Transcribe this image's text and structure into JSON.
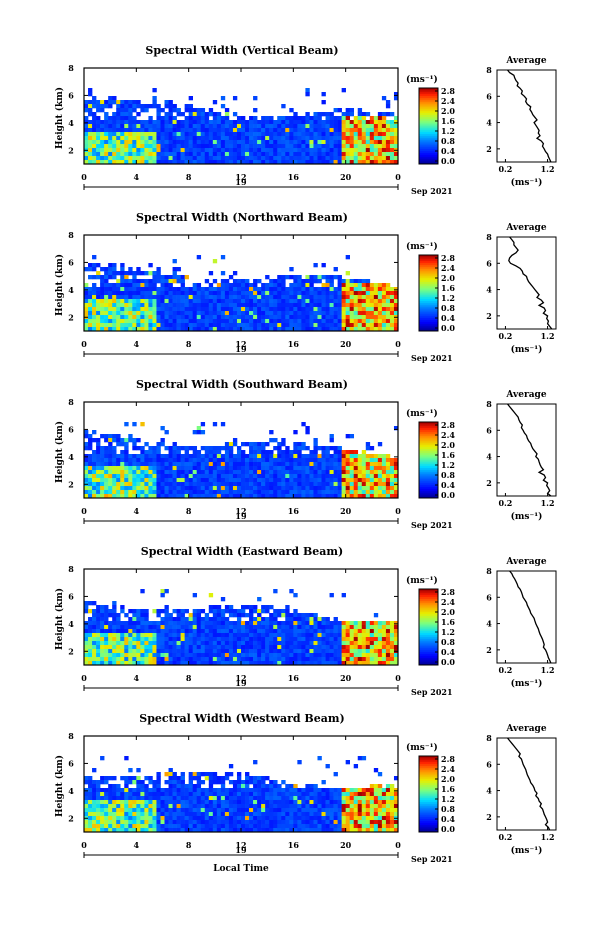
{
  "chart_data": [
    {
      "type": "heatmap",
      "title": "Spectral Width (Vertical Beam)",
      "ylabel": "Height (km)",
      "yticks": [
        "2",
        "4",
        "6",
        "8"
      ],
      "xticks": [
        "0",
        "4",
        "8",
        "12",
        "16",
        "20",
        "0"
      ],
      "date_day": "19",
      "date_month": "Sep 2021",
      "colorbar": {
        "unit": "(ms⁻¹)",
        "ticks": [
          "0.0",
          "0.4",
          "0.8",
          "1.2",
          "1.6",
          "2.0",
          "2.4",
          "2.8"
        ]
      },
      "average": {
        "title": "Average",
        "xlabel": "(ms⁻¹)",
        "xticks": [
          "0.2",
          "1.2"
        ],
        "yticks": [
          "2",
          "4",
          "6",
          "8"
        ],
        "heights": [
          8.0,
          7.8,
          7.6,
          7.4,
          7.2,
          7.0,
          6.8,
          6.6,
          6.4,
          6.2,
          6.0,
          5.8,
          5.6,
          5.4,
          5.2,
          5.0,
          4.8,
          4.6,
          4.4,
          4.2,
          4.0,
          3.8,
          3.6,
          3.4,
          3.2,
          3.0,
          2.8,
          2.6,
          2.4,
          2.2,
          2.0,
          1.8,
          1.6,
          1.4,
          1.2,
          1.0
        ],
        "values": [
          0.25,
          0.3,
          0.4,
          0.42,
          0.45,
          0.5,
          0.48,
          0.55,
          0.6,
          0.58,
          0.65,
          0.7,
          0.68,
          0.72,
          0.8,
          0.78,
          0.82,
          0.85,
          0.9,
          0.95,
          0.88,
          0.92,
          0.96,
          1.0,
          0.98,
          1.02,
          0.95,
          1.05,
          1.1,
          1.08,
          1.12,
          1.15,
          1.2,
          1.22,
          1.25,
          1.28
        ]
      }
    },
    {
      "type": "heatmap",
      "title": "Spectral Width (Northward Beam)",
      "ylabel": "Height (km)",
      "yticks": [
        "2",
        "4",
        "6",
        "8"
      ],
      "xticks": [
        "0",
        "4",
        "8",
        "12",
        "16",
        "20",
        "0"
      ],
      "date_day": "19",
      "date_month": "Sep 2021",
      "colorbar": {
        "unit": "(ms⁻¹)",
        "ticks": [
          "0.0",
          "0.4",
          "0.8",
          "1.2",
          "1.6",
          "2.0",
          "2.4",
          "2.8"
        ]
      },
      "average": {
        "title": "Average",
        "xlabel": "(ms⁻¹)",
        "xticks": [
          "0.2",
          "1.2"
        ],
        "yticks": [
          "2",
          "4",
          "6",
          "8"
        ],
        "heights": [
          8.0,
          7.8,
          7.6,
          7.4,
          7.2,
          7.0,
          6.8,
          6.6,
          6.4,
          6.2,
          6.0,
          5.8,
          5.6,
          5.4,
          5.2,
          5.0,
          4.8,
          4.6,
          4.4,
          4.2,
          4.0,
          3.8,
          3.6,
          3.4,
          3.2,
          3.0,
          2.8,
          2.6,
          2.4,
          2.2,
          2.0,
          1.8,
          1.6,
          1.4,
          1.2,
          1.0
        ],
        "values": [
          0.3,
          0.35,
          0.4,
          0.4,
          0.45,
          0.5,
          0.45,
          0.35,
          0.3,
          0.28,
          0.32,
          0.45,
          0.55,
          0.6,
          0.62,
          0.7,
          0.72,
          0.75,
          0.8,
          0.85,
          0.9,
          0.95,
          1.0,
          0.95,
          1.05,
          1.1,
          1.0,
          1.12,
          1.15,
          1.1,
          1.2,
          1.18,
          1.22,
          1.2,
          1.25,
          1.3
        ]
      }
    },
    {
      "type": "heatmap",
      "title": "Spectral Width (Southward Beam)",
      "ylabel": "Height (km)",
      "yticks": [
        "2",
        "4",
        "6",
        "8"
      ],
      "xticks": [
        "0",
        "4",
        "8",
        "12",
        "16",
        "20",
        "0"
      ],
      "date_day": "19",
      "date_month": "Sep 2021",
      "colorbar": {
        "unit": "(ms⁻¹)",
        "ticks": [
          "0.0",
          "0.4",
          "0.8",
          "1.2",
          "1.6",
          "2.0",
          "2.4",
          "2.8"
        ]
      },
      "average": {
        "title": "Average",
        "xlabel": "(ms⁻¹)",
        "xticks": [
          "0.2",
          "1.2"
        ],
        "yticks": [
          "2",
          "4",
          "6",
          "8"
        ],
        "heights": [
          8.0,
          7.8,
          7.6,
          7.4,
          7.2,
          7.0,
          6.8,
          6.6,
          6.4,
          6.2,
          6.0,
          5.8,
          5.6,
          5.4,
          5.2,
          5.0,
          4.8,
          4.6,
          4.4,
          4.2,
          4.0,
          3.8,
          3.6,
          3.4,
          3.2,
          3.0,
          2.8,
          2.6,
          2.4,
          2.2,
          2.0,
          1.8,
          1.6,
          1.4,
          1.2,
          1.0
        ],
        "values": [
          0.25,
          0.3,
          0.35,
          0.4,
          0.45,
          0.5,
          0.52,
          0.55,
          0.6,
          0.58,
          0.62,
          0.65,
          0.7,
          0.72,
          0.75,
          0.8,
          0.82,
          0.85,
          0.9,
          0.95,
          0.92,
          0.98,
          1.0,
          1.02,
          1.05,
          1.1,
          1.0,
          1.12,
          1.15,
          1.1,
          1.2,
          1.18,
          1.22,
          1.25,
          1.2,
          1.28
        ]
      }
    },
    {
      "type": "heatmap",
      "title": "Spectral Width (Eastward Beam)",
      "ylabel": "Height (km)",
      "yticks": [
        "2",
        "4",
        "6",
        "8"
      ],
      "xticks": [
        "0",
        "4",
        "8",
        "12",
        "16",
        "20",
        "0"
      ],
      "date_day": "19",
      "date_month": "Sep 2021",
      "colorbar": {
        "unit": "(ms⁻¹)",
        "ticks": [
          "0.0",
          "0.4",
          "0.8",
          "1.2",
          "1.6",
          "2.0",
          "2.4",
          "2.8"
        ]
      },
      "average": {
        "title": "Average",
        "xlabel": "(ms⁻¹)",
        "xticks": [
          "0.2",
          "1.2"
        ],
        "yticks": [
          "2",
          "4",
          "6",
          "8"
        ],
        "heights": [
          8.0,
          7.8,
          7.6,
          7.4,
          7.2,
          7.0,
          6.8,
          6.6,
          6.4,
          6.2,
          6.0,
          5.8,
          5.6,
          5.4,
          5.2,
          5.0,
          4.8,
          4.6,
          4.4,
          4.2,
          4.0,
          3.8,
          3.6,
          3.4,
          3.2,
          3.0,
          2.8,
          2.6,
          2.4,
          2.2,
          2.0,
          1.8,
          1.6,
          1.4,
          1.2,
          1.0
        ],
        "values": [
          0.3,
          0.35,
          0.38,
          0.42,
          0.45,
          0.48,
          0.5,
          0.55,
          0.58,
          0.6,
          0.62,
          0.66,
          0.7,
          0.72,
          0.75,
          0.78,
          0.8,
          0.84,
          0.88,
          0.9,
          0.92,
          0.95,
          0.98,
          1.0,
          1.02,
          1.05,
          1.08,
          1.1,
          1.12,
          1.1,
          1.15,
          1.18,
          1.2,
          1.22,
          1.25,
          1.28
        ]
      }
    },
    {
      "type": "heatmap",
      "title": "Spectral Width (Westward Beam)",
      "ylabel": "Height (km)",
      "yticks": [
        "2",
        "4",
        "6",
        "8"
      ],
      "xticks": [
        "0",
        "4",
        "8",
        "12",
        "16",
        "20",
        "0"
      ],
      "date_day": "19",
      "date_month": "Sep 2021",
      "xlabel": "Local Time",
      "colorbar": {
        "unit": "(ms⁻¹)",
        "ticks": [
          "0.0",
          "0.4",
          "0.8",
          "1.2",
          "1.6",
          "2.0",
          "2.4",
          "2.8"
        ]
      },
      "average": {
        "title": "Average",
        "xlabel": "(ms⁻¹)",
        "xticks": [
          "0.2",
          "1.2"
        ],
        "yticks": [
          "2",
          "4",
          "6",
          "8"
        ],
        "heights": [
          8.0,
          7.8,
          7.6,
          7.4,
          7.2,
          7.0,
          6.8,
          6.6,
          6.4,
          6.2,
          6.0,
          5.8,
          5.6,
          5.4,
          5.2,
          5.0,
          4.8,
          4.6,
          4.4,
          4.2,
          4.0,
          3.8,
          3.6,
          3.4,
          3.2,
          3.0,
          2.8,
          2.6,
          2.4,
          2.2,
          2.0,
          1.8,
          1.6,
          1.4,
          1.2,
          1.0
        ],
        "values": [
          0.25,
          0.3,
          0.35,
          0.4,
          0.45,
          0.5,
          0.55,
          0.52,
          0.58,
          0.6,
          0.62,
          0.65,
          0.68,
          0.7,
          0.72,
          0.75,
          0.78,
          0.8,
          0.85,
          0.88,
          0.9,
          0.95,
          0.92,
          0.98,
          1.0,
          1.05,
          1.02,
          1.08,
          1.1,
          1.12,
          1.15,
          1.18,
          1.2,
          1.15,
          1.22,
          1.25
        ]
      }
    }
  ]
}
